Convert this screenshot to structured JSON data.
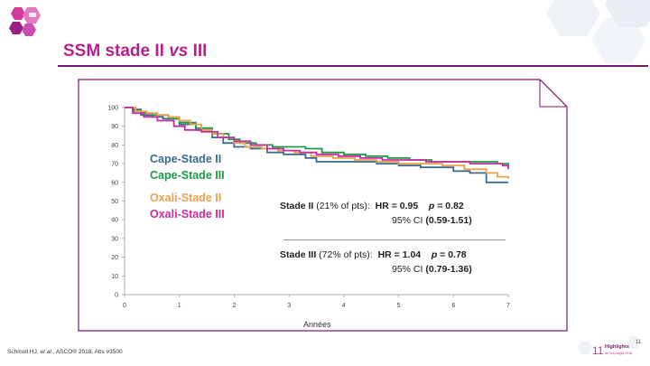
{
  "slide": {
    "title_main": "SSM stade II ",
    "title_vs": "vs",
    "title_end": " III",
    "footnote_authors": "Schmoll HJ, ",
    "footnote_etal": "et al.",
    "footnote_rest": ", ASCO® 2018, Abs #3500",
    "page_number": "11",
    "logo_text_top": "11",
    "logo_text_mid": "Highlights",
    "logo_text_bot": "de l'oncologie 2018"
  },
  "colors": {
    "title": "#b5218c",
    "cape_stade_ii": "#3a6b8c",
    "cape_stade_iii": "#1a9a4a",
    "oxali_stade_ii": "#e8a050",
    "oxali_stade_iii": "#c62ea0",
    "frame": "#7a1a6e"
  },
  "chart_data": {
    "type": "line",
    "xlabel": "Années",
    "ylabel": "",
    "xlim": [
      0,
      7
    ],
    "ylim": [
      0,
      100
    ],
    "xticks": [
      "0",
      "1",
      "2",
      "3",
      "4",
      "5",
      "6",
      "7"
    ],
    "yticks": [
      "0",
      "10",
      "20",
      "30",
      "40",
      "50",
      "60",
      "70",
      "80",
      "90",
      "100"
    ],
    "grid": false,
    "legend_position": "left-center",
    "series": [
      {
        "name": "Cape-Stade II",
        "color": "#3a6b8c",
        "x": [
          0,
          0.15,
          0.3,
          0.5,
          0.7,
          1.0,
          1.3,
          1.6,
          1.8,
          2.0,
          2.3,
          2.6,
          2.9,
          3.1,
          3.3,
          3.5,
          3.8,
          4.2,
          4.6,
          5.0,
          5.4,
          6.0,
          6.3,
          6.6,
          7.0
        ],
        "y": [
          100,
          99,
          96,
          95,
          94,
          91,
          88,
          84,
          81,
          79,
          78,
          76,
          75,
          75,
          73,
          71,
          71,
          71,
          70,
          69,
          68,
          66,
          65,
          60,
          60
        ]
      },
      {
        "name": "Cape-Stade III",
        "color": "#1a9a4a",
        "x": [
          0,
          0.15,
          0.3,
          0.5,
          0.8,
          1.0,
          1.3,
          1.6,
          1.9,
          2.1,
          2.4,
          2.7,
          3.0,
          3.3,
          3.6,
          4.0,
          4.4,
          4.8,
          5.2,
          5.6,
          6.0,
          6.4,
          6.8,
          7.0
        ],
        "y": [
          100,
          98,
          97,
          96,
          94,
          92,
          89,
          86,
          83,
          81,
          80,
          79,
          79,
          78,
          76,
          75,
          74,
          73,
          72,
          71,
          71,
          71,
          70,
          68
        ]
      },
      {
        "name": "Oxali-Stade II",
        "color": "#e8a050",
        "x": [
          0,
          0.2,
          0.4,
          0.6,
          0.8,
          1.0,
          1.2,
          1.4,
          1.6,
          1.8,
          2.0,
          2.2,
          2.5,
          2.8,
          3.1,
          3.4,
          3.8,
          4.2,
          4.6,
          5.0,
          5.4,
          5.8,
          6.2,
          6.6,
          6.8,
          7.0
        ],
        "y": [
          100,
          98,
          97,
          96,
          95,
          93,
          91,
          88,
          86,
          84,
          81,
          79,
          78,
          77,
          76,
          74,
          73,
          72,
          71,
          70,
          70,
          69,
          67,
          65,
          63,
          62
        ]
      },
      {
        "name": "Oxali-Stade III",
        "color": "#c62ea0",
        "x": [
          0,
          0.15,
          0.35,
          0.6,
          0.9,
          1.1,
          1.4,
          1.7,
          2.0,
          2.3,
          2.6,
          2.9,
          3.2,
          3.5,
          3.9,
          4.3,
          4.7,
          5.1,
          5.5,
          5.9,
          6.3,
          6.6,
          6.9,
          7.0
        ],
        "y": [
          100,
          97,
          95,
          93,
          90,
          88,
          87,
          84,
          82,
          80,
          78,
          77,
          76,
          75,
          74,
          73,
          72,
          72,
          71,
          71,
          70,
          70,
          69,
          67
        ]
      }
    ],
    "annotations": {
      "stade2_label": "Stade II",
      "stade2_pts": " (21% of pts):",
      "stade2_hr": "HR = 0.95",
      "stade2_p_label": "p",
      "stade2_p": " = 0.82",
      "stade2_ci_label": "95% CI ",
      "stade2_ci": "(0.59-1.51)",
      "stade3_label": "Stade III",
      "stade3_pts": " (72% of pts):",
      "stade3_hr": "HR = 1.04",
      "stade3_p_label": "p",
      "stade3_p": " = 0.78",
      "stade3_ci_label": "95% CI ",
      "stade3_ci": "(0.79-1.36)"
    }
  }
}
